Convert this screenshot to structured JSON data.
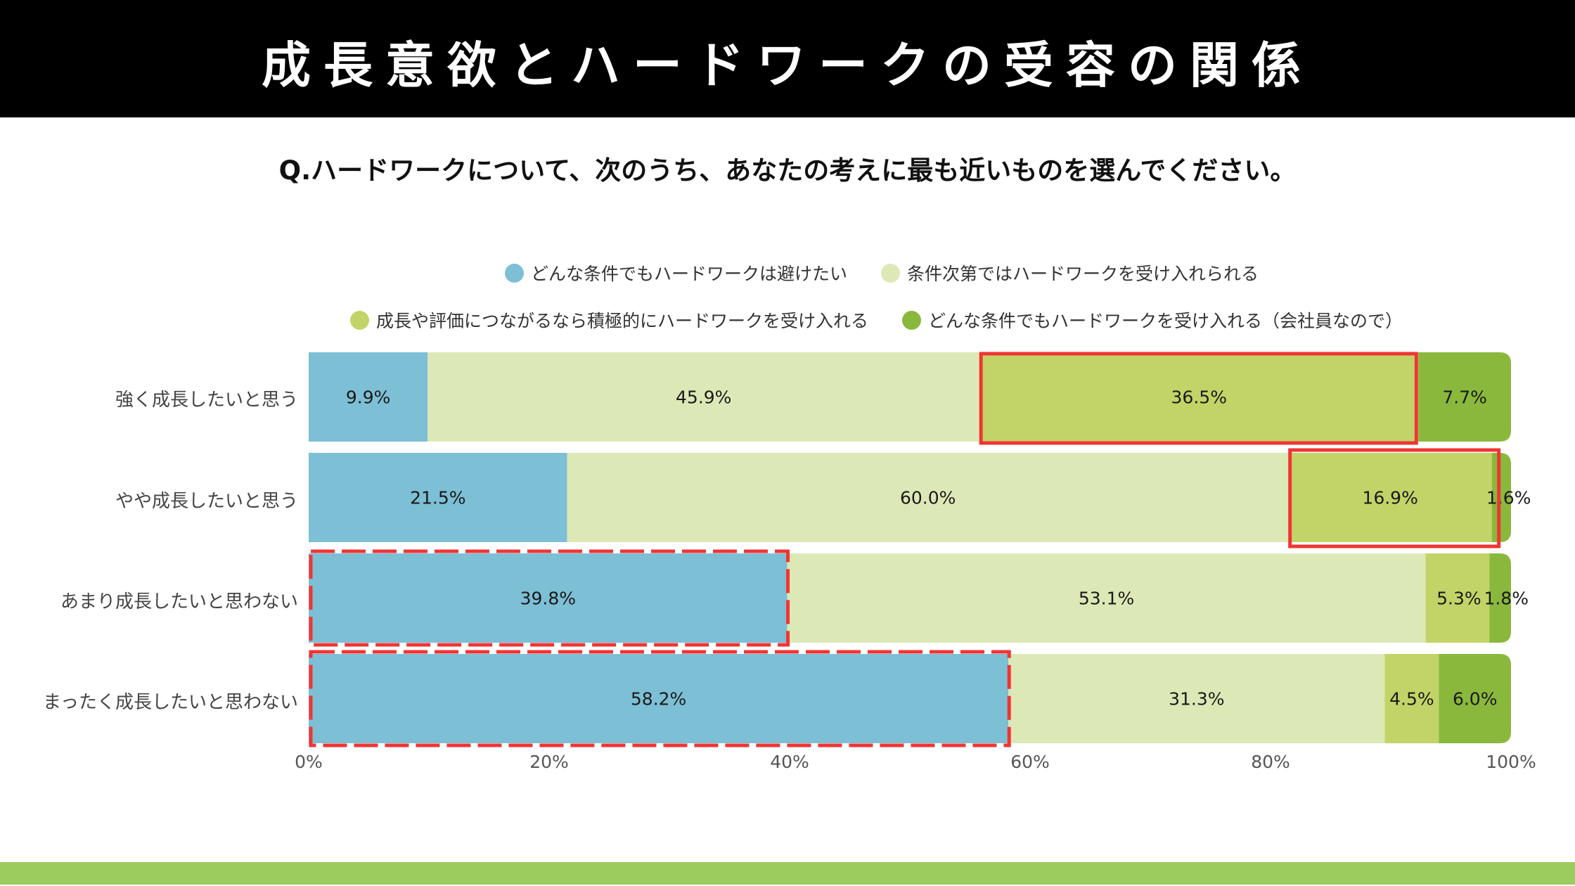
{
  "header": {
    "title": "成長意欲とハードワークの受容の関係"
  },
  "question": "Q.ハードワークについて、次のうち、あなたの考えに最も近いものを選んでください。",
  "colors": {
    "title_bg": "#000000",
    "footer": "#9ccb5e",
    "highlight": "#f03535"
  },
  "chart_data": {
    "type": "bar",
    "orientation": "horizontal",
    "stacked": true,
    "title": "",
    "xlabel": "",
    "ylabel": "",
    "xlim": [
      0,
      100
    ],
    "x_ticks": [
      "0%",
      "20%",
      "40%",
      "60%",
      "80%",
      "100%"
    ],
    "x_tick_values": [
      0,
      20,
      40,
      60,
      80,
      100
    ],
    "legend_position": "top",
    "categories": [
      "強く成長したいと思う",
      "やや成長したいと思う",
      "あまり成長したいと思わない",
      "まったく成長したいと思わない"
    ],
    "series": [
      {
        "name": "どんな条件でもハードワークは避けたい",
        "color": "#7dbfd5",
        "values": [
          9.9,
          21.5,
          39.8,
          58.2
        ],
        "labels": [
          "9.9%",
          "21.5%",
          "39.8%",
          "58.2%"
        ]
      },
      {
        "name": "条件次第ではハードワークを受け入れられる",
        "color": "#dce9b6",
        "values": [
          45.9,
          60.0,
          53.1,
          31.3
        ],
        "labels": [
          "45.9%",
          "60.0%",
          "53.1%",
          "31.3%"
        ]
      },
      {
        "name": "成長や評価につながるなら積極的にハードワークを受け入れる",
        "color": "#c2d467",
        "values": [
          36.5,
          16.9,
          5.3,
          4.5
        ],
        "labels": [
          "36.5%",
          "16.9%",
          "5.3%",
          "4.5%"
        ]
      },
      {
        "name": "どんな条件でもハードワークを受け入れる（会社員なので）",
        "color": "#8ab83c",
        "values": [
          7.7,
          1.6,
          1.8,
          6.0
        ],
        "labels": [
          "7.7%",
          "1.6%",
          "1.8%",
          "6.0%"
        ]
      }
    ],
    "highlights": [
      {
        "category_index": 0,
        "series_index": 2,
        "style": "solid"
      },
      {
        "category_index": 1,
        "series_index": 2,
        "style": "solid"
      },
      {
        "category_index": 2,
        "series_index": 0,
        "style": "dashed"
      },
      {
        "category_index": 3,
        "series_index": 0,
        "style": "dashed"
      }
    ]
  }
}
